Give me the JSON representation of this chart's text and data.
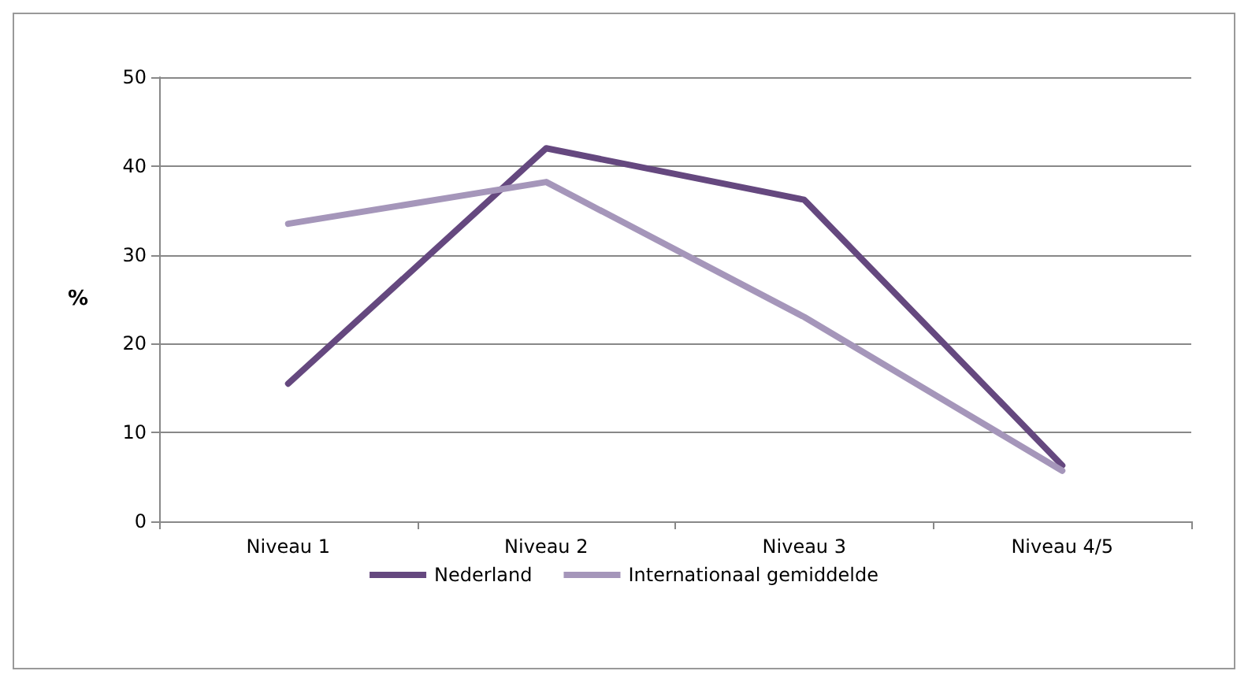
{
  "chart_data": {
    "type": "line",
    "ylabel": "%",
    "categories": [
      "Niveau 1",
      "Niveau 2",
      "Niveau 3",
      "Niveau 4/5"
    ],
    "series": [
      {
        "name": "Nederland",
        "color": "#65487f",
        "values": [
          15.5,
          42,
          36.2,
          6.3
        ]
      },
      {
        "name": "Internationaal gemiddelde",
        "color": "#a596ba",
        "values": [
          33.5,
          38.2,
          23,
          5.7
        ]
      }
    ],
    "ylim": [
      0,
      50
    ],
    "yticks": [
      0,
      10,
      20,
      30,
      40,
      50
    ],
    "grid": "y",
    "legend": "bottom",
    "marker": "none",
    "line_style": "solid"
  }
}
